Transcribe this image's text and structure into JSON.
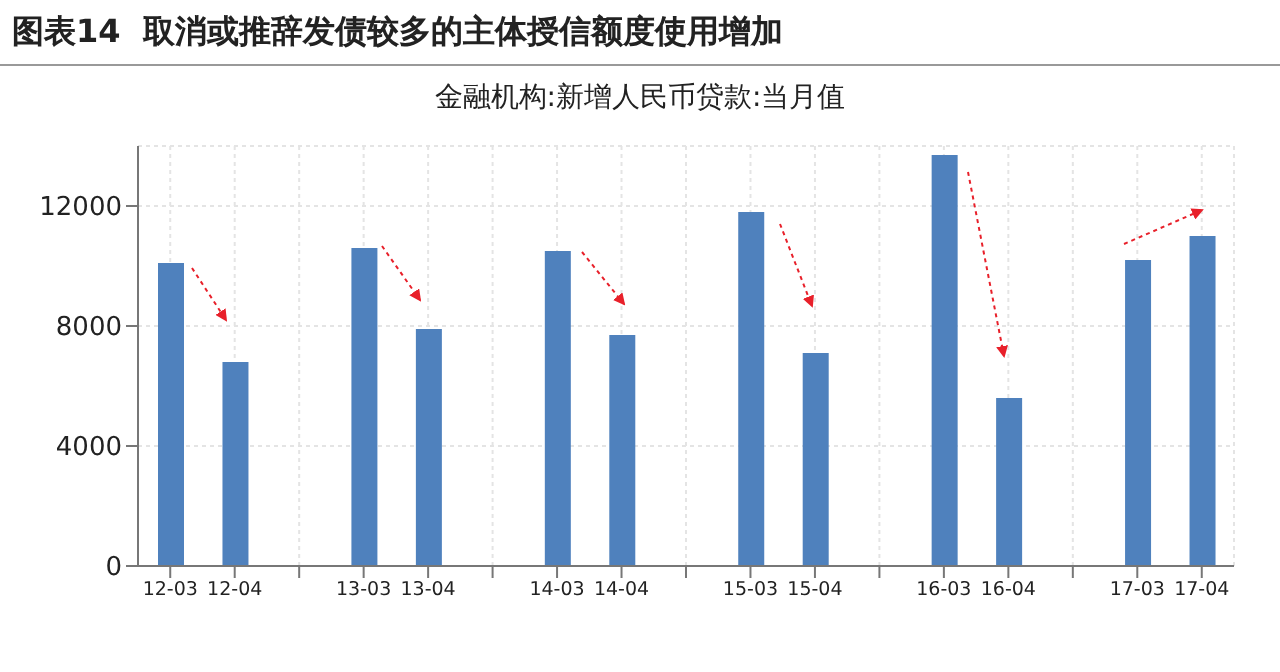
{
  "chart_data": {
    "type": "bar",
    "title": "图表14  取消或推辞发债较多的主体授信额度使用增加",
    "subtitle": "金融机构:新增人民币贷款:当月值",
    "categories": [
      "12-03",
      "12-04",
      null,
      "13-03",
      "13-04",
      null,
      "14-03",
      "14-04",
      null,
      "15-03",
      "15-04",
      null,
      "16-03",
      "16-04",
      null,
      "17-03",
      "17-04"
    ],
    "values": [
      10100,
      6800,
      null,
      10600,
      7900,
      null,
      10500,
      7700,
      null,
      11800,
      7100,
      null,
      13700,
      5600,
      null,
      10200,
      11000
    ],
    "color": "#4f81bd",
    "ylim": [
      0,
      14000
    ],
    "yticks": [
      0,
      4000,
      8000,
      12000
    ],
    "grid": true
  }
}
